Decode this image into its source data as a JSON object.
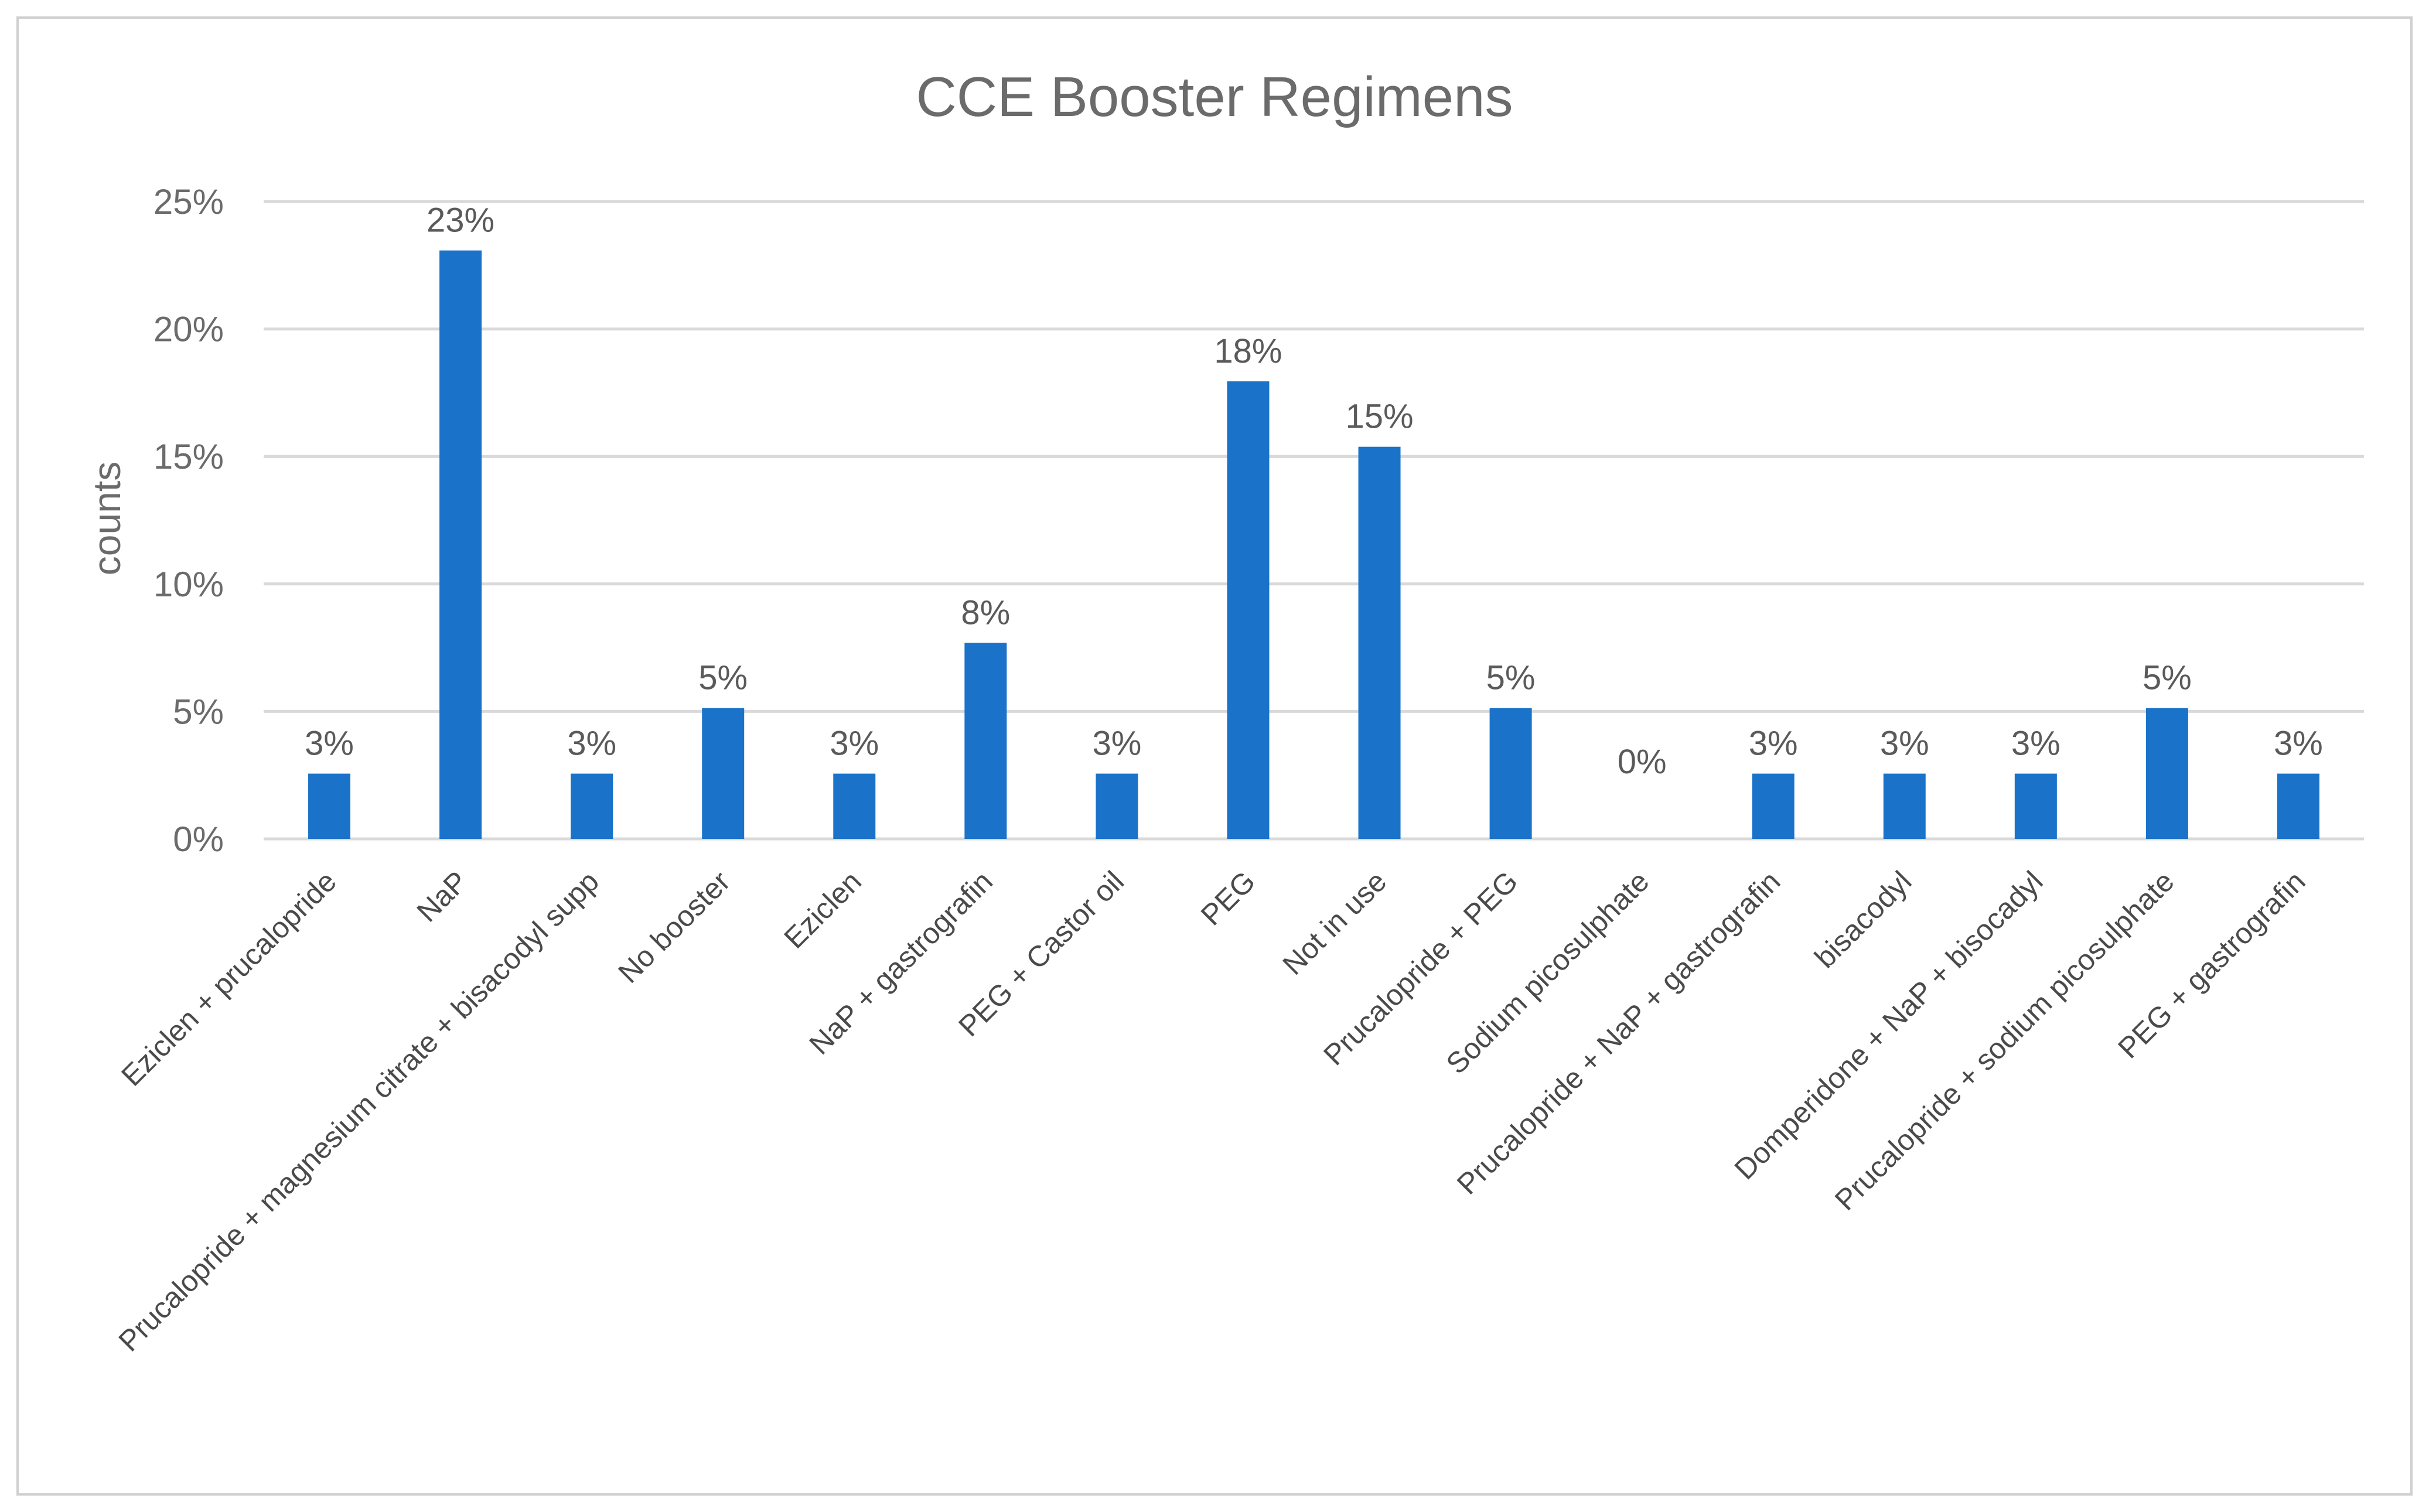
{
  "chart_data": {
    "type": "bar",
    "title": "CCE Booster Regimens",
    "xlabel": "",
    "ylabel": "counts",
    "ylim": [
      0,
      0.25
    ],
    "yticks": [
      0,
      0.05,
      0.1,
      0.15,
      0.2,
      0.25
    ],
    "ytick_labels": [
      "0%",
      "5%",
      "10%",
      "15%",
      "20%",
      "25%"
    ],
    "grid": true,
    "legend": "none",
    "bar_color": "#1a73c9",
    "categories": [
      "Eziclen + prucalopride",
      "NaP",
      "Prucalopride + magnesium citrate + bisacodyl supp",
      "No booster",
      "Eziclen",
      "NaP + gastrografin",
      "PEG + Castor oil",
      "PEG",
      "Not in use",
      "Prucalopride + PEG",
      "Sodium picosulphate",
      "Prucalopride + NaP + gastrografin",
      "bisacodyl",
      "Domperidone + NaP + bisocadyl",
      "Prucalopride + sodium picosulphate",
      "PEG + gastrografin"
    ],
    "values": [
      0.0256,
      0.2308,
      0.0256,
      0.0513,
      0.0256,
      0.0769,
      0.0256,
      0.1795,
      0.1538,
      0.0513,
      0.0,
      0.0256,
      0.0256,
      0.0256,
      0.0513,
      0.0256
    ],
    "data_labels": [
      "3%",
      "23%",
      "3%",
      "5%",
      "3%",
      "8%",
      "3%",
      "18%",
      "15%",
      "5%",
      "0%",
      "3%",
      "3%",
      "3%",
      "5%",
      "3%"
    ]
  }
}
